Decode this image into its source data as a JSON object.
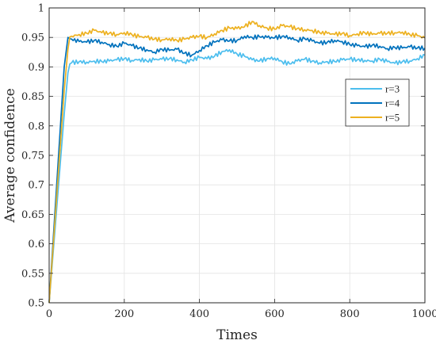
{
  "chart_data": {
    "type": "line",
    "title": "",
    "xlabel": "Times",
    "ylabel": "Average confidence",
    "xlim": [
      0,
      1000
    ],
    "ylim": [
      0.5,
      1
    ],
    "xticks": [
      0,
      200,
      400,
      600,
      800,
      1000
    ],
    "xtick_labels": [
      "0",
      "200",
      "400",
      "600",
      "800",
      "1000"
    ],
    "yticks": [
      0.5,
      0.55,
      0.6,
      0.65,
      0.7,
      0.75,
      0.8,
      0.85,
      0.9,
      0.95,
      1
    ],
    "ytick_labels": [
      "0.5",
      "0.55",
      "0.6",
      "0.65",
      "0.7",
      "0.75",
      "0.8",
      "0.85",
      "0.9",
      "0.95",
      "1"
    ],
    "grid": true,
    "legend_position": "right",
    "x": [
      0,
      20,
      40,
      50,
      55,
      60,
      80,
      100,
      120,
      140,
      160,
      180,
      200,
      220,
      240,
      260,
      280,
      300,
      320,
      340,
      360,
      380,
      400,
      420,
      440,
      460,
      480,
      500,
      520,
      540,
      560,
      580,
      600,
      620,
      640,
      660,
      680,
      700,
      720,
      740,
      760,
      780,
      800,
      820,
      840,
      860,
      880,
      900,
      920,
      940,
      960,
      980,
      1000
    ],
    "series": [
      {
        "name": "r=3",
        "color": "#4DBEEE",
        "values": [
          0.5,
          0.66,
          0.82,
          0.89,
          0.905,
          0.907,
          0.909,
          0.908,
          0.91,
          0.909,
          0.91,
          0.912,
          0.914,
          0.911,
          0.913,
          0.91,
          0.912,
          0.913,
          0.914,
          0.912,
          0.908,
          0.912,
          0.916,
          0.914,
          0.918,
          0.926,
          0.929,
          0.922,
          0.918,
          0.912,
          0.91,
          0.914,
          0.915,
          0.909,
          0.905,
          0.91,
          0.913,
          0.91,
          0.907,
          0.909,
          0.909,
          0.912,
          0.913,
          0.912,
          0.911,
          0.91,
          0.913,
          0.909,
          0.906,
          0.909,
          0.91,
          0.914,
          0.92
        ]
      },
      {
        "name": "r=4",
        "color": "#0072BD",
        "values": [
          0.5,
          0.7,
          0.9,
          0.95,
          0.948,
          0.947,
          0.943,
          0.942,
          0.945,
          0.942,
          0.938,
          0.935,
          0.94,
          0.936,
          0.932,
          0.929,
          0.925,
          0.93,
          0.928,
          0.93,
          0.923,
          0.92,
          0.928,
          0.936,
          0.942,
          0.946,
          0.944,
          0.945,
          0.952,
          0.95,
          0.951,
          0.95,
          0.949,
          0.952,
          0.95,
          0.945,
          0.948,
          0.944,
          0.94,
          0.942,
          0.945,
          0.943,
          0.938,
          0.936,
          0.934,
          0.937,
          0.935,
          0.931,
          0.933,
          0.932,
          0.934,
          0.932,
          0.932
        ]
      },
      {
        "name": "r=5",
        "color": "#EDB120",
        "values": [
          0.5,
          0.68,
          0.86,
          0.93,
          0.951,
          0.952,
          0.955,
          0.957,
          0.962,
          0.958,
          0.957,
          0.955,
          0.958,
          0.955,
          0.951,
          0.95,
          0.947,
          0.946,
          0.948,
          0.945,
          0.947,
          0.95,
          0.952,
          0.95,
          0.956,
          0.962,
          0.966,
          0.965,
          0.968,
          0.977,
          0.97,
          0.966,
          0.964,
          0.97,
          0.968,
          0.965,
          0.963,
          0.962,
          0.958,
          0.957,
          0.955,
          0.957,
          0.953,
          0.956,
          0.958,
          0.955,
          0.957,
          0.957,
          0.958,
          0.959,
          0.955,
          0.953,
          0.949
        ]
      }
    ]
  }
}
